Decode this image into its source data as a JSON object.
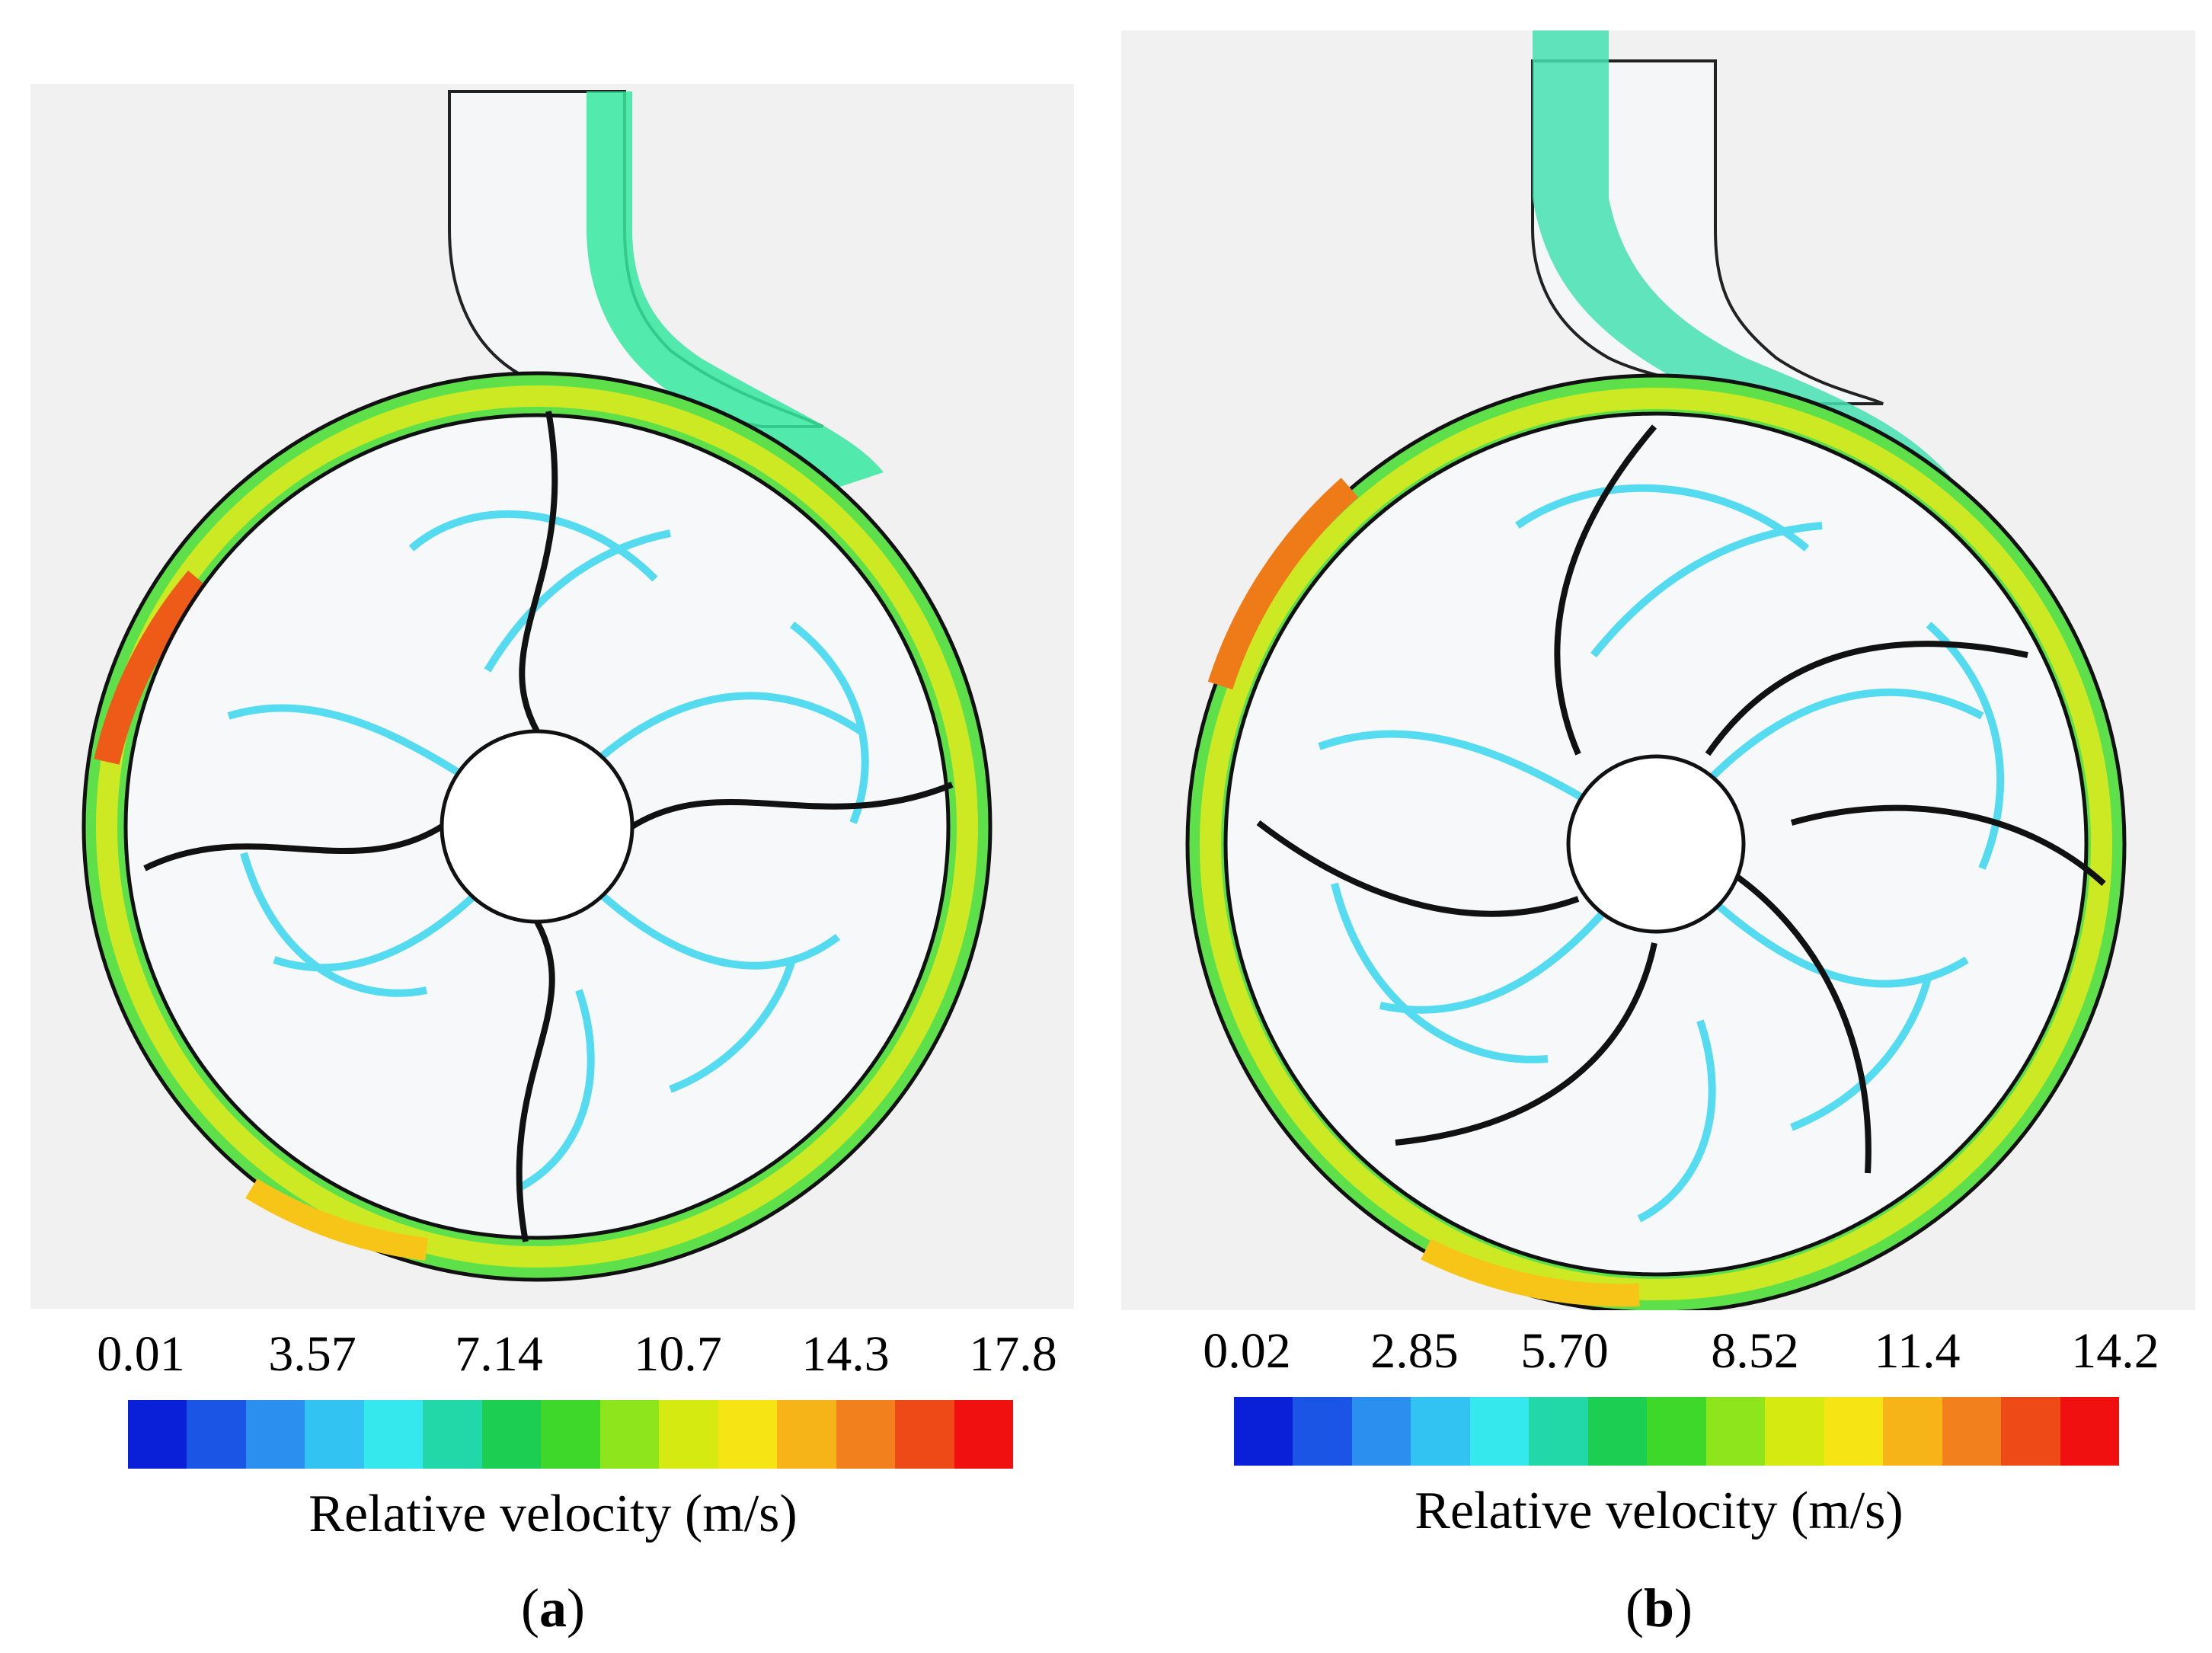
{
  "panels": [
    {
      "id": "a",
      "caption_letter": "a",
      "impeller_blades": 4,
      "colorbar": {
        "title": "Relative velocity (m/s)",
        "ticks": [
          "0.01",
          "3.57",
          "7.14",
          "10.7",
          "14.3",
          "17.8"
        ],
        "min": 0.01,
        "max": 17.8
      }
    },
    {
      "id": "b",
      "caption_letter": "b",
      "impeller_blades": 6,
      "colorbar": {
        "title": "Relative velocity (m/s)",
        "ticks": [
          "0.02",
          "2.85",
          "5.70",
          "8.52",
          "11.4",
          "14.2"
        ],
        "min": 0.02,
        "max": 14.2
      }
    }
  ],
  "colormap": [
    "#0a1fd8",
    "#1a55e6",
    "#2a8fee",
    "#33c3f2",
    "#35e8ee",
    "#22d8a8",
    "#1ccf52",
    "#3ed82a",
    "#8ee51c",
    "#d4ea10",
    "#f7e414",
    "#f7b418",
    "#f2801c",
    "#ee4a18",
    "#f01010"
  ]
}
